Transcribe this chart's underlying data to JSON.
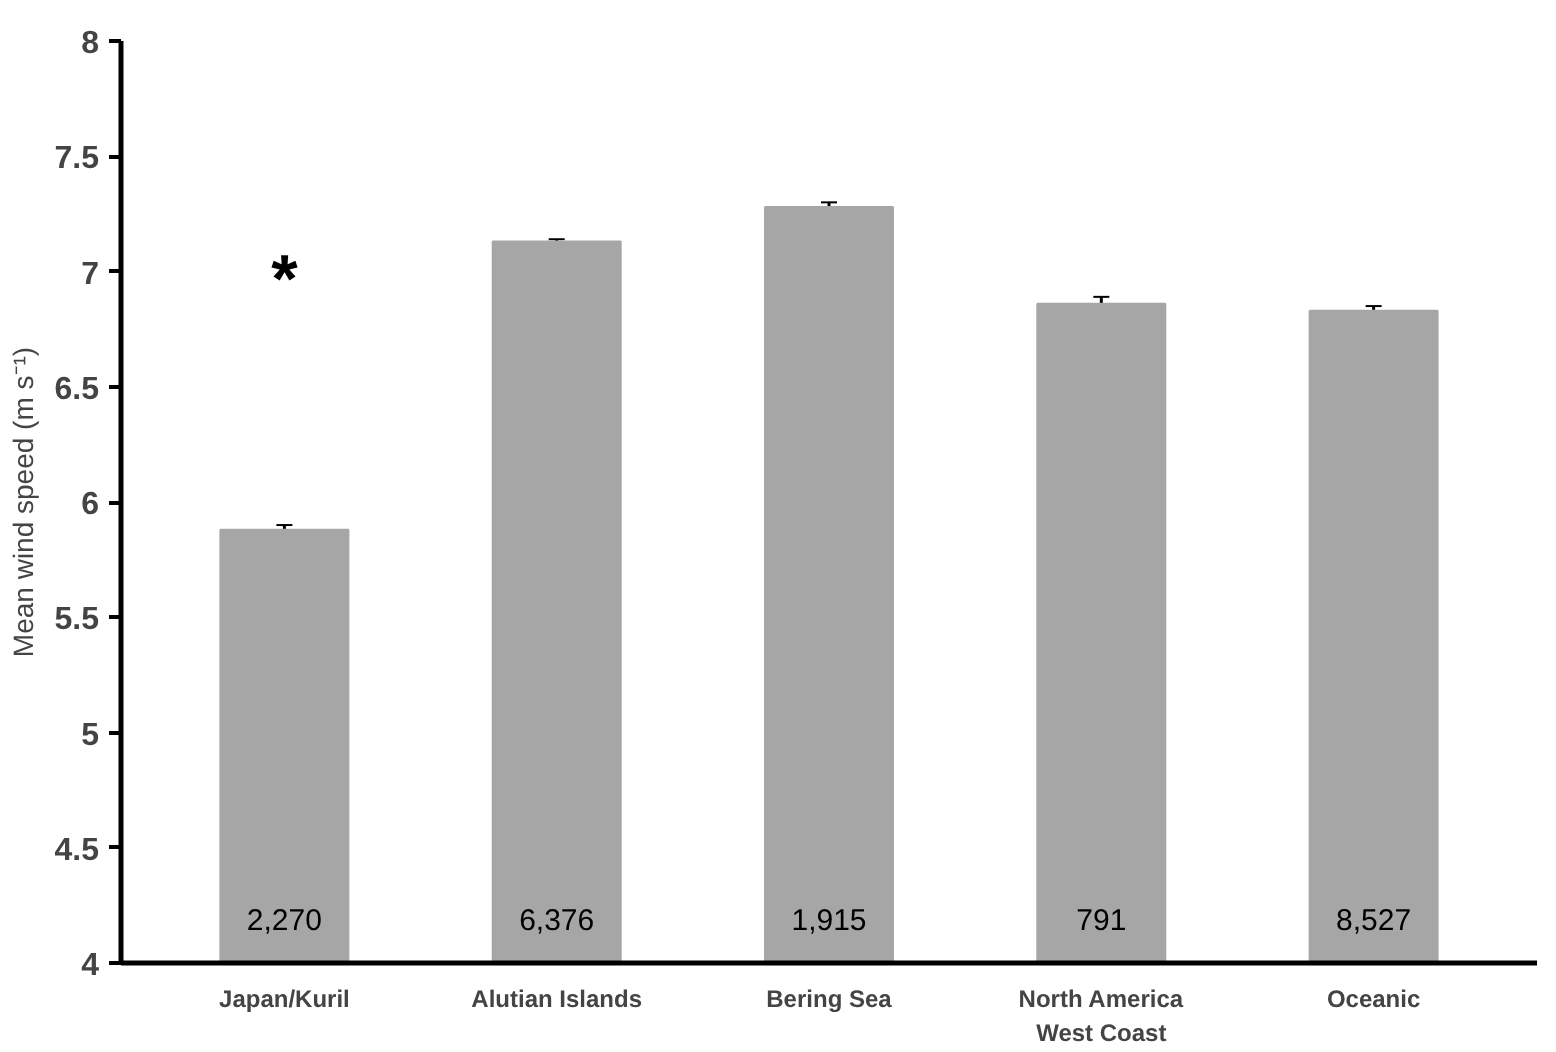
{
  "chart_data": {
    "type": "bar",
    "ylabel": "Mean wind speed (m s⁻¹)",
    "categories": [
      "Japan/Kuril",
      "Alutian Islands",
      "Bering Sea",
      "North America\nWest Coast",
      "Oceanic"
    ],
    "values": [
      5.88,
      7.13,
      7.28,
      6.86,
      6.83
    ],
    "errors": [
      0.02,
      0.01,
      0.02,
      0.03,
      0.02
    ],
    "color": "#a6a6a6",
    "ylim": [
      4,
      8
    ],
    "yticks": [
      4,
      4.5,
      5,
      5.5,
      6,
      6.5,
      7,
      7.5,
      8
    ],
    "grid": false,
    "annotations": [
      "*",
      "2,270",
      "6,376",
      "1,915",
      "791",
      "8,527"
    ]
  }
}
